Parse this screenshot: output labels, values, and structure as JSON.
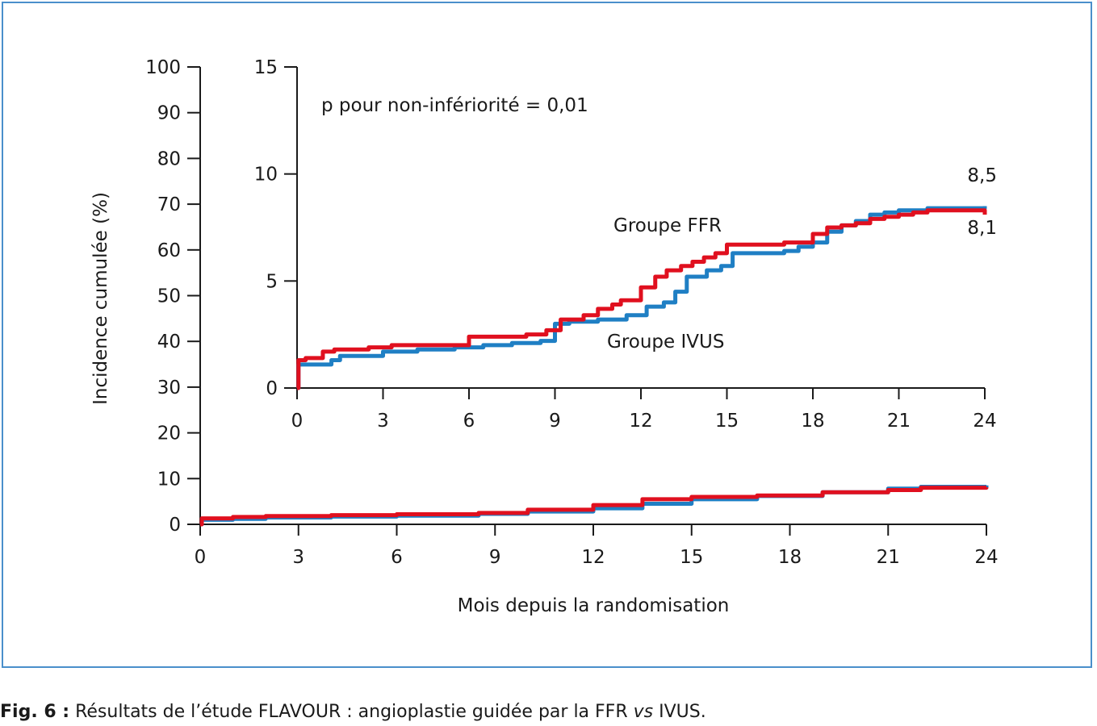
{
  "colors": {
    "ffr": "#e0101f",
    "ivus": "#1f7fc4",
    "frame": "#4a8fcb",
    "axis": "#1a1a1a"
  },
  "caption": {
    "label": "Fig. 6 :",
    "text_before": " Résultats de l’étude FLAVOUR : angioplastie guidée par la FFR ",
    "text_italic": "vs",
    "text_after": " IVUS."
  },
  "chart_data": [
    {
      "type": "line",
      "step": true,
      "xlabel": "Mois depuis la randomisation",
      "ylabel": "Incidence cumulée (%)",
      "xlim": [
        0,
        24
      ],
      "ylim": [
        0,
        100
      ],
      "xticks": [
        "0",
        "3",
        "6",
        "9",
        "12",
        "15",
        "18",
        "21",
        "24"
      ],
      "yticks": [
        "0",
        "10",
        "20",
        "30",
        "40",
        "50",
        "60",
        "70",
        "80",
        "90",
        "100"
      ],
      "series": [
        {
          "key": "ivus",
          "x": [
            0,
            0.05,
            1,
            2,
            4,
            6,
            8.5,
            10,
            12,
            13.5,
            15,
            17,
            19,
            21,
            22,
            24
          ],
          "y": [
            0,
            1.0,
            1.2,
            1.5,
            1.7,
            1.9,
            2.3,
            2.8,
            3.5,
            4.5,
            5.5,
            6.2,
            7.0,
            7.8,
            8.2,
            8.5
          ]
        },
        {
          "key": "ffr",
          "x": [
            0,
            0.05,
            1,
            2,
            4,
            6,
            8.5,
            10,
            12,
            13.5,
            15,
            17,
            19,
            21,
            22,
            24
          ],
          "y": [
            0,
            1.3,
            1.6,
            1.8,
            2.0,
            2.2,
            2.5,
            3.2,
            4.2,
            5.5,
            6.0,
            6.3,
            7.0,
            7.5,
            8.0,
            8.1
          ]
        }
      ]
    },
    {
      "type": "line",
      "step": true,
      "inset": true,
      "xlim": [
        0,
        24
      ],
      "ylim": [
        0,
        15
      ],
      "xticks": [
        "0",
        "3",
        "6",
        "9",
        "12",
        "15",
        "18",
        "21",
        "24"
      ],
      "yticks": [
        "0",
        "5",
        "10",
        "15"
      ],
      "annotations": {
        "p_value": "p pour non-infériorité = 0,01",
        "ffr_label": "Groupe FFR",
        "ivus_label": "Groupe IVUS",
        "ivus_end": "8,5",
        "ffr_end": "8,1"
      },
      "series": [
        {
          "key": "ivus",
          "x": [
            0,
            0.05,
            1.2,
            1.5,
            3,
            4.2,
            5.5,
            6.5,
            7.5,
            8.5,
            9,
            9.5,
            10.5,
            11.5,
            12.2,
            12.8,
            13.2,
            13.6,
            14.3,
            14.8,
            15.2,
            17,
            17.5,
            18,
            18.5,
            19,
            19.5,
            20,
            20.5,
            21,
            22,
            24
          ],
          "y": [
            0,
            1.1,
            1.3,
            1.5,
            1.7,
            1.8,
            1.9,
            2.0,
            2.1,
            2.2,
            3.0,
            3.1,
            3.2,
            3.4,
            3.8,
            4.0,
            4.5,
            5.2,
            5.5,
            5.7,
            6.3,
            6.4,
            6.6,
            6.8,
            7.3,
            7.6,
            7.8,
            8.1,
            8.2,
            8.3,
            8.4,
            8.5
          ]
        },
        {
          "key": "ffr",
          "x": [
            0,
            0.05,
            0.3,
            0.9,
            1.3,
            2.5,
            3.3,
            6,
            8,
            8.7,
            9.2,
            10,
            10.5,
            11,
            11.3,
            12,
            12.5,
            12.9,
            13.4,
            13.8,
            14.2,
            14.6,
            15,
            17,
            18,
            18.5,
            19,
            19.5,
            20,
            20.5,
            21,
            21.5,
            22,
            24
          ],
          "y": [
            0,
            1.3,
            1.4,
            1.7,
            1.8,
            1.9,
            2.0,
            2.4,
            2.5,
            2.7,
            3.2,
            3.4,
            3.7,
            3.9,
            4.1,
            4.7,
            5.2,
            5.5,
            5.7,
            5.9,
            6.1,
            6.3,
            6.7,
            6.8,
            7.2,
            7.5,
            7.6,
            7.7,
            7.9,
            8.0,
            8.1,
            8.2,
            8.3,
            8.1
          ]
        }
      ]
    }
  ]
}
